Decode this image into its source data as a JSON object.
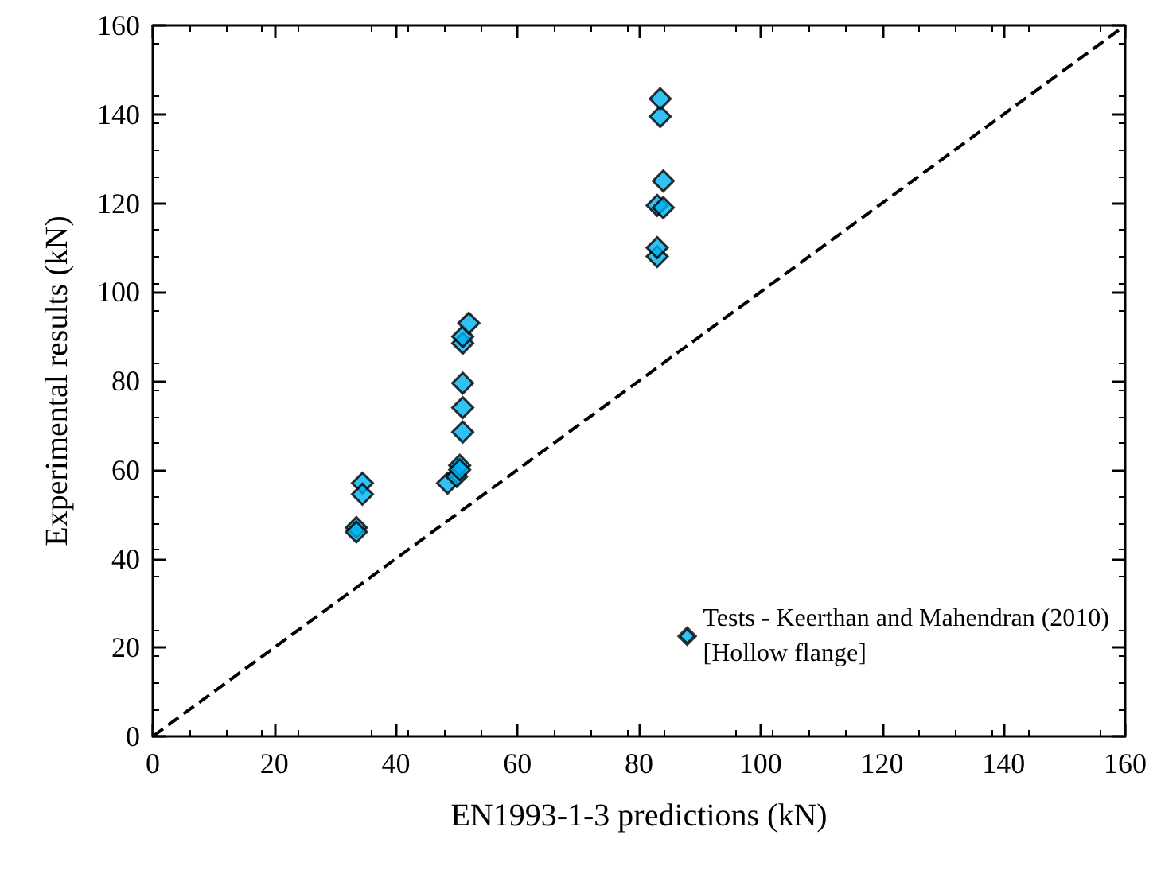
{
  "chart_data": {
    "type": "scatter",
    "xlabel": "EN1993-1-3 predictions (kN)",
    "ylabel": "Experimental results (kN)",
    "xlim": [
      0,
      160
    ],
    "xticks": [
      0,
      20,
      40,
      60,
      80,
      100,
      120,
      140,
      160
    ],
    "ylim": [
      0,
      160
    ],
    "yticks": [
      0,
      20,
      40,
      60,
      80,
      100,
      120,
      140,
      160
    ],
    "grid": false,
    "legend": "bottom right",
    "marker": "diamond",
    "series": [
      {
        "name": "Tests - Keerthan and Mahendran (2010)\n[Hollow flange]",
        "color": "#00b0f0",
        "x": [
          33.5,
          33.5,
          34.5,
          34.5,
          48.5,
          50,
          50.5,
          50.5,
          51,
          51,
          51,
          51,
          51,
          52,
          83,
          83,
          83,
          84,
          84,
          83.5,
          83.5
        ],
        "values": [
          47,
          46,
          57,
          54.5,
          57,
          58.5,
          61,
          60,
          68.5,
          74,
          79.5,
          88.5,
          90,
          93,
          108,
          110,
          119.5,
          119,
          125,
          139.5,
          143.5
        ]
      },
      {
        "type": "line",
        "color": "#000000",
        "line_style": "dashed",
        "marker": "none",
        "x": [
          0,
          160
        ],
        "values": [
          0,
          160
        ]
      }
    ]
  }
}
